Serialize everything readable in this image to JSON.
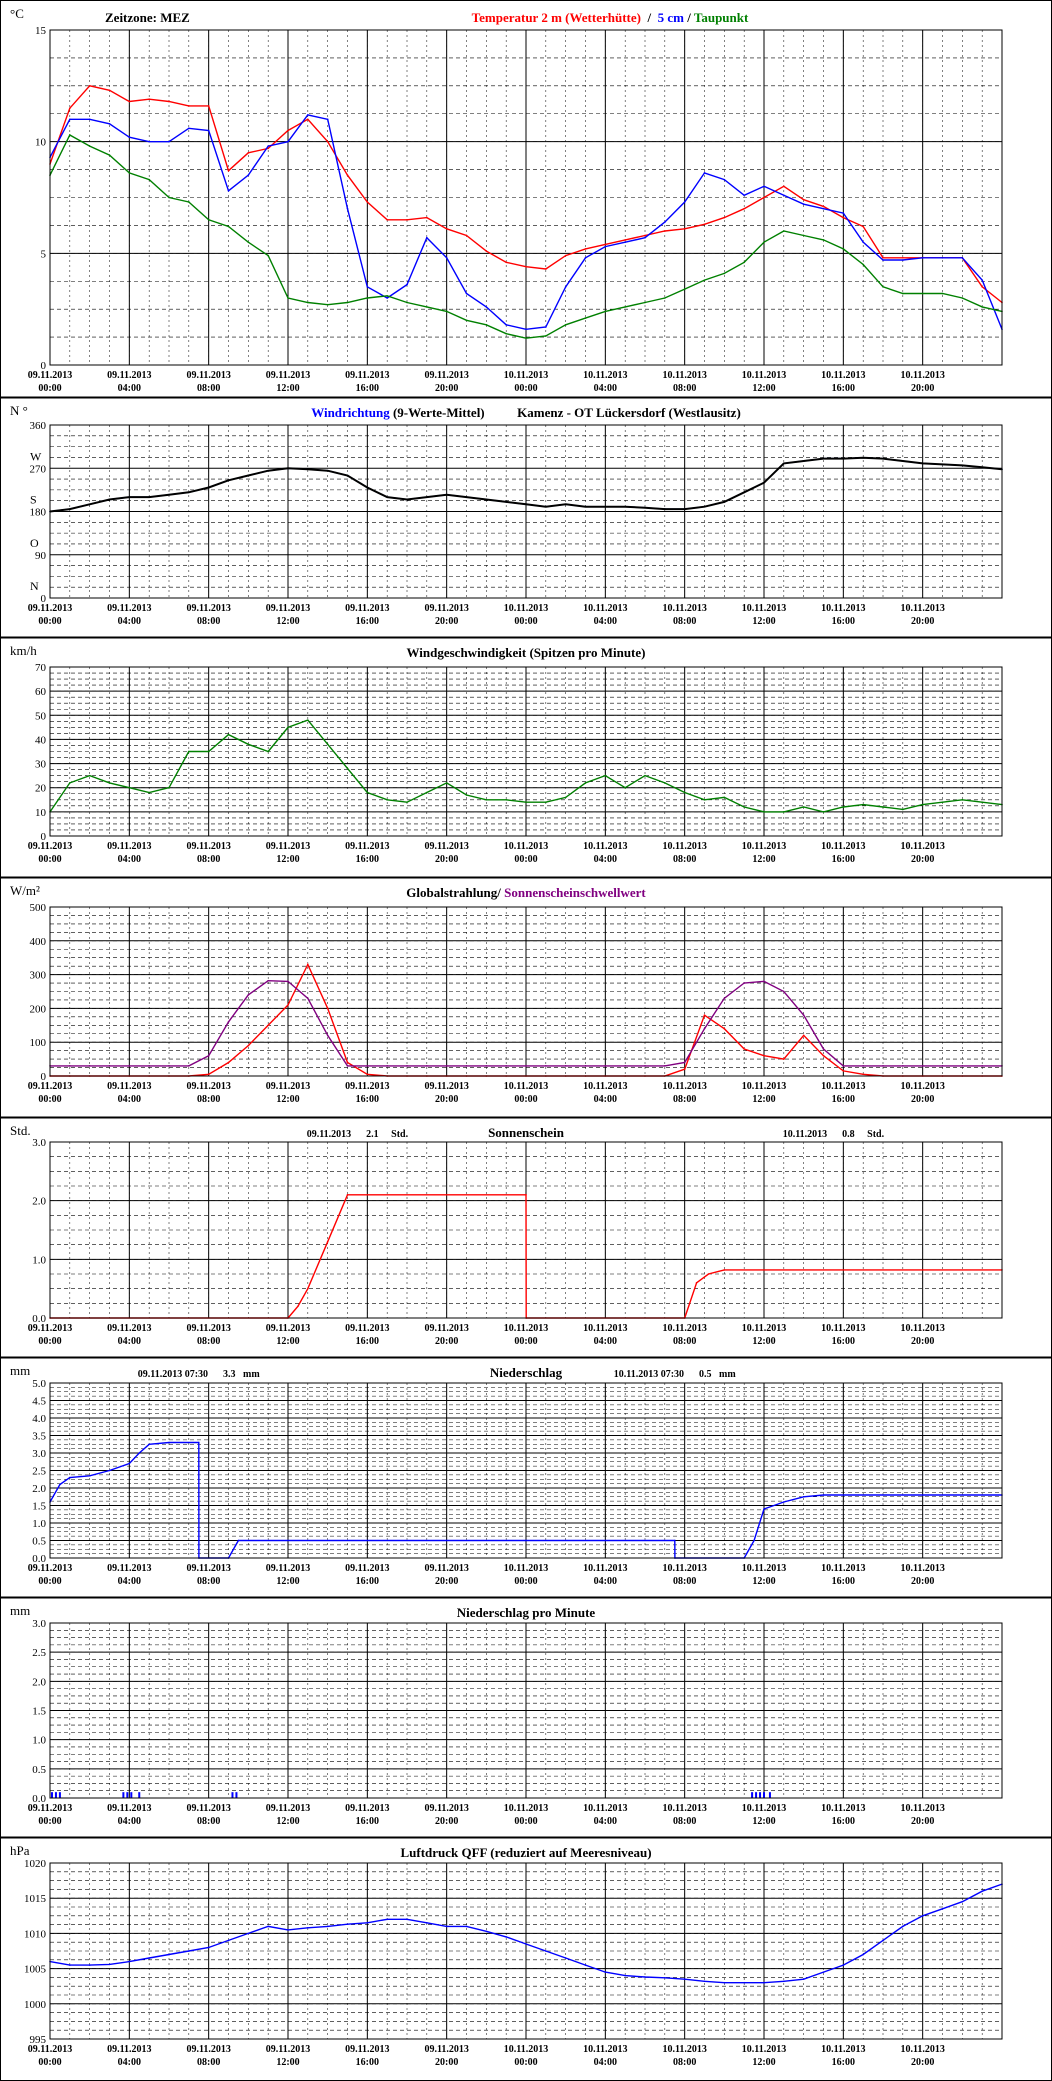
{
  "x_ticks": [
    {
      "date": "09.11.2013",
      "time": "00:00"
    },
    {
      "date": "09.11.2013",
      "time": "04:00"
    },
    {
      "date": "09.11.2013",
      "time": "08:00"
    },
    {
      "date": "09.11.2013",
      "time": "12:00"
    },
    {
      "date": "09.11.2013",
      "time": "16:00"
    },
    {
      "date": "09.11.2013",
      "time": "20:00"
    },
    {
      "date": "10.11.2013",
      "time": "00:00"
    },
    {
      "date": "10.11.2013",
      "time": "04:00"
    },
    {
      "date": "10.11.2013",
      "time": "08:00"
    },
    {
      "date": "10.11.2013",
      "time": "12:00"
    },
    {
      "date": "10.11.2013",
      "time": "16:00"
    },
    {
      "date": "10.11.2013",
      "time": "20:00"
    }
  ],
  "chart_data": [
    {
      "id": "temperature",
      "type": "line",
      "unit": "°C",
      "timezone": "Zeitzone: MEZ",
      "title_parts": [
        {
          "text": "Temperatur 2 m (Wetterhütte)",
          "color": "#ff0000"
        },
        {
          "text": "  /  ",
          "color": "#000000"
        },
        {
          "text": "5 cm",
          "color": "#0000ff"
        },
        {
          "text": " / ",
          "color": "#000000"
        },
        {
          "text": "Taupunkt",
          "color": "#008000"
        }
      ],
      "ylim": [
        0,
        15
      ],
      "yticks": [
        0,
        5,
        10,
        15
      ],
      "x_hours": [
        0,
        1,
        2,
        3,
        4,
        5,
        6,
        7,
        8,
        9,
        10,
        11,
        12,
        13,
        14,
        15,
        16,
        17,
        18,
        19,
        20,
        21,
        22,
        23,
        24,
        25,
        26,
        27,
        28,
        29,
        30,
        31,
        32,
        33,
        34,
        35,
        36,
        37,
        38,
        39,
        40,
        41,
        42,
        43,
        44,
        45,
        46,
        47,
        48
      ],
      "series": [
        {
          "name": "Temperatur 2 m (Wetterhütte)",
          "color": "#ff0000",
          "values": [
            9.0,
            11.5,
            12.5,
            12.3,
            11.8,
            11.9,
            11.8,
            11.6,
            11.6,
            8.7,
            9.5,
            9.7,
            10.5,
            11.0,
            10.0,
            8.5,
            7.3,
            6.5,
            6.5,
            6.6,
            6.1,
            5.8,
            5.1,
            4.6,
            4.4,
            4.3,
            4.9,
            5.2,
            5.4,
            5.6,
            5.8,
            6.0,
            6.1,
            6.3,
            6.6,
            7.0,
            7.5,
            8.0,
            7.4,
            7.1,
            6.6,
            6.2,
            4.8,
            4.8,
            4.8,
            4.8,
            4.8,
            3.5,
            2.8
          ]
        },
        {
          "name": "5 cm",
          "color": "#0000ff",
          "values": [
            9.3,
            11.0,
            11.0,
            10.8,
            10.2,
            10.0,
            10.0,
            10.6,
            10.5,
            7.8,
            8.5,
            9.8,
            10.0,
            11.2,
            11.0,
            7.0,
            3.5,
            3.0,
            3.6,
            5.7,
            4.8,
            3.2,
            2.6,
            1.8,
            1.6,
            1.7,
            3.5,
            4.8,
            5.3,
            5.5,
            5.7,
            6.4,
            7.3,
            8.6,
            8.3,
            7.6,
            8.0,
            7.6,
            7.2,
            7.0,
            6.8,
            5.5,
            4.7,
            4.7,
            4.8,
            4.8,
            4.8,
            3.8,
            1.6
          ]
        },
        {
          "name": "Taupunkt",
          "color": "#008000",
          "values": [
            8.5,
            10.3,
            9.8,
            9.4,
            8.6,
            8.3,
            7.5,
            7.3,
            6.5,
            6.2,
            5.5,
            4.9,
            3.0,
            2.8,
            2.7,
            2.8,
            3.0,
            3.1,
            2.8,
            2.6,
            2.4,
            2.0,
            1.8,
            1.4,
            1.2,
            1.3,
            1.8,
            2.1,
            2.4,
            2.6,
            2.8,
            3.0,
            3.4,
            3.8,
            4.1,
            4.6,
            5.5,
            6.0,
            5.8,
            5.6,
            5.2,
            4.5,
            3.5,
            3.2,
            3.2,
            3.2,
            3.0,
            2.6,
            2.4
          ]
        }
      ]
    },
    {
      "id": "wind-direction",
      "type": "line",
      "unit": "N °",
      "title_parts": [
        {
          "text": "Windrichtung",
          "color": "#0000ff"
        },
        {
          "text": " (9-Werte-Mittel)",
          "color": "#000000"
        },
        {
          "text": "          Kamenz - OT Lückersdorf (Westlausitz)",
          "color": "#000000"
        }
      ],
      "ylim": [
        0,
        360
      ],
      "yticks": [
        0,
        90,
        180,
        270,
        360
      ],
      "compass_labels": [
        {
          "value": 0,
          "text": "N"
        },
        {
          "value": 90,
          "text": "O"
        },
        {
          "value": 180,
          "text": "S"
        },
        {
          "value": 270,
          "text": "W"
        }
      ],
      "x_hours": [
        0,
        1,
        2,
        3,
        4,
        5,
        6,
        7,
        8,
        9,
        10,
        11,
        12,
        13,
        14,
        15,
        16,
        17,
        18,
        19,
        20,
        21,
        22,
        23,
        24,
        25,
        26,
        27,
        28,
        29,
        30,
        31,
        32,
        33,
        34,
        35,
        36,
        37,
        38,
        39,
        40,
        41,
        42,
        43,
        44,
        45,
        46,
        47,
        48
      ],
      "series": [
        {
          "name": "Windrichtung",
          "color": "#3366ff",
          "values": [
            180,
            185,
            195,
            205,
            210,
            210,
            215,
            220,
            230,
            245,
            255,
            265,
            270,
            268,
            265,
            255,
            230,
            210,
            205,
            210,
            215,
            210,
            205,
            200,
            195,
            190,
            195,
            190,
            190,
            190,
            188,
            185,
            185,
            190,
            200,
            220,
            240,
            280,
            285,
            290,
            290,
            292,
            290,
            285,
            280,
            278,
            276,
            272,
            268
          ]
        },
        {
          "name": "9-Werte-Mittel",
          "color": "#000000",
          "values": [
            180,
            185,
            195,
            205,
            210,
            210,
            215,
            220,
            230,
            245,
            255,
            265,
            270,
            268,
            265,
            255,
            230,
            210,
            205,
            210,
            215,
            210,
            205,
            200,
            195,
            190,
            195,
            190,
            190,
            190,
            188,
            185,
            185,
            190,
            200,
            220,
            240,
            280,
            285,
            290,
            290,
            292,
            290,
            285,
            280,
            278,
            276,
            272,
            268
          ]
        }
      ]
    },
    {
      "id": "wind-speed",
      "type": "line",
      "unit": "km/h",
      "title_parts": [
        {
          "text": "Windgeschwindigkeit (Spitzen pro Minute)",
          "color": "#000000"
        }
      ],
      "ylim": [
        0,
        70
      ],
      "yticks": [
        0,
        10,
        20,
        30,
        40,
        50,
        60,
        70
      ],
      "x_hours": [
        0,
        1,
        2,
        3,
        4,
        5,
        6,
        7,
        8,
        9,
        10,
        11,
        12,
        13,
        14,
        15,
        16,
        17,
        18,
        19,
        20,
        21,
        22,
        23,
        24,
        25,
        26,
        27,
        28,
        29,
        30,
        31,
        32,
        33,
        34,
        35,
        36,
        37,
        38,
        39,
        40,
        41,
        42,
        43,
        44,
        45,
        46,
        47,
        48
      ],
      "series": [
        {
          "name": "Windgeschwindigkeit",
          "color": "#008000",
          "values": [
            10,
            22,
            25,
            22,
            20,
            18,
            20,
            35,
            35,
            42,
            38,
            35,
            45,
            48,
            38,
            28,
            18,
            15,
            14,
            18,
            22,
            17,
            15,
            15,
            14,
            14,
            16,
            22,
            25,
            20,
            25,
            22,
            18,
            15,
            16,
            12,
            10,
            10,
            12,
            10,
            12,
            13,
            12,
            11,
            13,
            14,
            15,
            14,
            13
          ]
        }
      ]
    },
    {
      "id": "global-radiation",
      "type": "line",
      "unit": "W/m²",
      "title_parts": [
        {
          "text": "Globalstrahlung/ ",
          "color": "#000000"
        },
        {
          "text": "Sonnenscheinschwellwert",
          "color": "#800080"
        }
      ],
      "ylim": [
        0,
        500
      ],
      "yticks": [
        0,
        100,
        200,
        300,
        400,
        500
      ],
      "x_hours": [
        0,
        1,
        2,
        3,
        4,
        5,
        6,
        7,
        8,
        9,
        10,
        11,
        12,
        13,
        14,
        15,
        16,
        17,
        18,
        19,
        20,
        21,
        22,
        23,
        24,
        25,
        26,
        27,
        28,
        29,
        30,
        31,
        32,
        33,
        34,
        35,
        36,
        37,
        38,
        39,
        40,
        41,
        42,
        43,
        44,
        45,
        46,
        47,
        48
      ],
      "series": [
        {
          "name": "Globalstrahlung",
          "color": "#ff0000",
          "values": [
            0,
            0,
            0,
            0,
            0,
            0,
            0,
            0,
            5,
            40,
            90,
            150,
            210,
            330,
            200,
            40,
            5,
            0,
            0,
            0,
            0,
            0,
            0,
            0,
            0,
            0,
            0,
            0,
            0,
            0,
            0,
            0,
            20,
            180,
            140,
            80,
            60,
            50,
            120,
            60,
            15,
            5,
            0,
            0,
            0,
            0,
            0,
            0,
            0
          ]
        },
        {
          "name": "Sonnenscheinschwellwert",
          "color": "#800080",
          "values": [
            30,
            30,
            30,
            30,
            30,
            30,
            30,
            30,
            60,
            160,
            240,
            282,
            280,
            230,
            120,
            30,
            30,
            30,
            30,
            30,
            30,
            30,
            30,
            30,
            30,
            30,
            30,
            30,
            30,
            30,
            30,
            30,
            40,
            140,
            230,
            275,
            280,
            250,
            180,
            80,
            30,
            30,
            30,
            30,
            30,
            30,
            30,
            30,
            30
          ]
        }
      ]
    },
    {
      "id": "sunshine",
      "type": "line",
      "unit": "Std.",
      "title_parts": [
        {
          "text": "Sonnenschein",
          "color": "#000000"
        }
      ],
      "annotations": [
        {
          "text": "09.11.2013      2.1     Std.",
          "hour": 15.5
        },
        {
          "text": "10.11.2013      0.8     Std.",
          "hour": 39.5
        }
      ],
      "ylim": [
        0,
        3.0
      ],
      "yticks": [
        0.0,
        1.0,
        2.0,
        3.0
      ],
      "ytick_labels": [
        "0.0",
        "1.0",
        "2.0",
        "3.0"
      ],
      "x_hours": [
        0,
        12.0,
        12.5,
        13.0,
        14.0,
        15.0,
        24.0,
        24.01,
        32.0,
        32.6,
        33.2,
        34.0,
        48.0
      ],
      "series": [
        {
          "name": "Sonnenschein",
          "color": "#ff0000",
          "values": [
            0,
            0,
            0.2,
            0.5,
            1.3,
            2.1,
            2.1,
            0,
            0,
            0.6,
            0.75,
            0.82,
            0.82
          ]
        }
      ]
    },
    {
      "id": "precipitation",
      "type": "line",
      "unit": "mm",
      "title_parts": [
        {
          "text": "Niederschlag",
          "color": "#000000"
        }
      ],
      "annotations": [
        {
          "text": "09.11.2013 07:30      3.3   mm",
          "hour": 7.5
        },
        {
          "text": "10.11.2013 07:30      0.5   mm",
          "hour": 31.5
        }
      ],
      "ylim": [
        0,
        5.0
      ],
      "yticks": [
        0.0,
        0.5,
        1.0,
        1.5,
        2.0,
        2.5,
        3.0,
        3.5,
        4.0,
        4.5,
        5.0
      ],
      "ytick_labels": [
        "0.0",
        "0.5",
        "1.0",
        "1.5",
        "2.0",
        "2.5",
        "3.0",
        "3.5",
        "4.0",
        "4.5",
        "5.0"
      ],
      "x_hours": [
        0,
        0.5,
        1.0,
        2.0,
        3.0,
        4.0,
        4.5,
        5.0,
        6.0,
        7.5,
        7.51,
        9.0,
        9.5,
        31.5,
        31.51,
        35.0,
        35.5,
        36.0,
        37.0,
        38.0,
        39.0,
        48.0
      ],
      "series": [
        {
          "name": "Niederschlag",
          "color": "#0000ff",
          "values": [
            1.6,
            2.1,
            2.3,
            2.35,
            2.5,
            2.7,
            3.0,
            3.25,
            3.3,
            3.3,
            0,
            0,
            0.5,
            0.5,
            0,
            0,
            0.5,
            1.4,
            1.6,
            1.75,
            1.8,
            1.8
          ]
        }
      ]
    },
    {
      "id": "precipitation-per-minute",
      "type": "bar",
      "unit": "mm",
      "title_parts": [
        {
          "text": "Niederschlag pro Minute",
          "color": "#000000"
        }
      ],
      "ylim": [
        0,
        3.0
      ],
      "yticks": [
        0.0,
        0.5,
        1.0,
        1.5,
        2.0,
        2.5,
        3.0
      ],
      "ytick_labels": [
        "0.0",
        "0.5",
        "1.0",
        "1.5",
        "2.0",
        "2.5",
        "3.0"
      ],
      "x_hours": [
        0.1,
        0.3,
        0.5,
        3.7,
        3.9,
        4.1,
        4.5,
        9.2,
        9.4,
        35.4,
        35.6,
        35.8,
        36.0,
        36.3
      ],
      "series": [
        {
          "name": "Niederschlag pro Minute",
          "color": "#0000ff",
          "values": [
            0.1,
            0.1,
            0.1,
            0.1,
            0.1,
            0.1,
            0.1,
            0.1,
            0.1,
            0.1,
            0.1,
            0.1,
            0.1,
            0.1
          ]
        }
      ]
    },
    {
      "id": "pressure",
      "type": "line",
      "unit": "hPa",
      "title_parts": [
        {
          "text": "Luftdruck QFF (reduziert auf Meeresniveau)",
          "color": "#000000"
        }
      ],
      "ylim": [
        995,
        1020
      ],
      "yticks": [
        995,
        1000,
        1005,
        1010,
        1015,
        1020
      ],
      "x_hours": [
        0,
        1,
        2,
        3,
        4,
        5,
        6,
        7,
        8,
        9,
        10,
        11,
        12,
        13,
        14,
        15,
        16,
        17,
        18,
        19,
        20,
        21,
        22,
        23,
        24,
        25,
        26,
        27,
        28,
        29,
        30,
        31,
        32,
        33,
        34,
        35,
        36,
        37,
        38,
        39,
        40,
        41,
        42,
        43,
        44,
        45,
        46,
        47,
        48
      ],
      "series": [
        {
          "name": "Luftdruck QFF",
          "color": "#0000ff",
          "values": [
            1006.0,
            1005.5,
            1005.5,
            1005.6,
            1006.0,
            1006.5,
            1007.0,
            1007.5,
            1008.0,
            1009.0,
            1010.0,
            1011.0,
            1010.5,
            1010.8,
            1011.0,
            1011.3,
            1011.5,
            1012.0,
            1012.0,
            1011.5,
            1011.0,
            1011.0,
            1010.3,
            1009.5,
            1008.5,
            1007.5,
            1006.5,
            1005.5,
            1004.5,
            1004.0,
            1003.8,
            1003.7,
            1003.5,
            1003.2,
            1003.0,
            1003.0,
            1003.0,
            1003.2,
            1003.5,
            1004.5,
            1005.5,
            1007.0,
            1009.0,
            1011.0,
            1012.5,
            1013.5,
            1014.5,
            1016.0,
            1017.0
          ]
        }
      ]
    }
  ]
}
